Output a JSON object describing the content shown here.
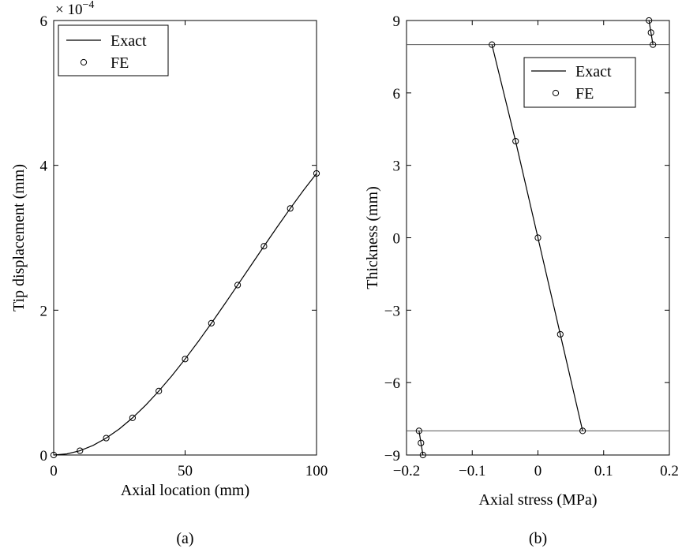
{
  "chart_data": [
    {
      "type": "line",
      "panel": "(a)",
      "xlabel": "Axial location (mm)",
      "ylabel": "Tip displacement (mm)",
      "y_multiplier_label": "× 10",
      "y_multiplier_exponent": "−4",
      "xlim": [
        0,
        100
      ],
      "ylim": [
        0,
        6
      ],
      "xticks": [
        0,
        50,
        100
      ],
      "xtick_labels": [
        "0",
        "50",
        "100"
      ],
      "yticks": [
        0,
        2,
        4,
        6
      ],
      "ytick_labels": [
        "0",
        "2",
        "4",
        "6"
      ],
      "legend": {
        "position": "top-left",
        "entries": [
          "Exact",
          "FE"
        ]
      },
      "series": [
        {
          "name": "Exact",
          "style": "line",
          "x": [
            0,
            5,
            10,
            15,
            20,
            25,
            30,
            35,
            40,
            45,
            50,
            55,
            60,
            65,
            70,
            75,
            80,
            85,
            90,
            95,
            100
          ],
          "y": [
            0,
            0.0149,
            0.0594,
            0.1326,
            0.2336,
            0.3609,
            0.513,
            0.6879,
            0.8832,
            1.096,
            1.325,
            1.567,
            1.82,
            2.081,
            2.347,
            2.615,
            2.883,
            3.147,
            3.405,
            3.653,
            3.888
          ]
        },
        {
          "name": "FE",
          "style": "marker",
          "x": [
            0,
            10,
            20,
            30,
            40,
            50,
            60,
            70,
            80,
            90,
            100
          ],
          "y": [
            0,
            0.0594,
            0.2336,
            0.513,
            0.8832,
            1.325,
            1.82,
            2.347,
            2.883,
            3.405,
            3.888
          ]
        }
      ]
    },
    {
      "type": "line",
      "panel": "(b)",
      "xlabel": "Axial stress (MPa)",
      "ylabel": "Thickness (mm)",
      "xlim": [
        -0.2,
        0.2
      ],
      "ylim": [
        -9,
        9
      ],
      "xticks": [
        -0.2,
        -0.1,
        0,
        0.1,
        0.2
      ],
      "xtick_labels": [
        "−0.2",
        "−0.1",
        "0",
        "0.1",
        "0.2"
      ],
      "yticks": [
        -9,
        -6,
        -3,
        0,
        3,
        6,
        9
      ],
      "ytick_labels": [
        "−9",
        "−6",
        "−3",
        "0",
        "3",
        "6",
        "9"
      ],
      "reference_lines_y": [
        8,
        -8
      ],
      "legend": {
        "position": "top-right",
        "entries": [
          "Exact",
          "FE"
        ]
      },
      "series": [
        {
          "name": "Exact",
          "style": "line",
          "segments": [
            {
              "x": [
                -0.175,
                -0.178,
                -0.181
              ],
              "y": [
                -9,
                -8.5,
                -8
              ]
            },
            {
              "x": [
                0.068,
                0.034,
                0,
                -0.034,
                -0.07
              ],
              "y": [
                -8,
                -4,
                0,
                4,
                8
              ]
            },
            {
              "x": [
                0.175,
                0.172,
                0.169
              ],
              "y": [
                8,
                8.5,
                9
              ]
            }
          ]
        },
        {
          "name": "FE",
          "style": "marker",
          "x": [
            -0.175,
            -0.178,
            -0.181,
            0.068,
            0.034,
            0,
            -0.034,
            -0.07,
            0.175,
            0.172,
            0.169
          ],
          "y": [
            -9,
            -8.5,
            -8,
            -8,
            -4,
            0,
            4,
            8,
            8,
            8.5,
            9
          ]
        }
      ]
    }
  ]
}
